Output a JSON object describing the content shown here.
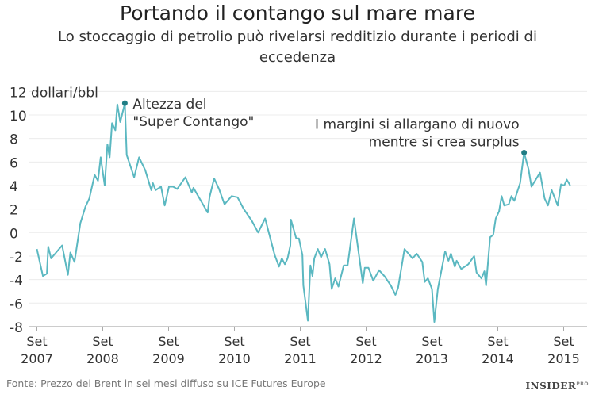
{
  "header": {
    "title": "Portando il contango sul mare mare",
    "subtitle": "Lo stoccaggio di petrolio può rivelarsi redditizio durante i periodi di eccedenza"
  },
  "footer": {
    "source": "Fonte: Prezzo del Brent in sei mesi diffuso su ICE Futures Europe",
    "logo": "INSIDER",
    "logo_sup": "PRO"
  },
  "chart_data": {
    "type": "line",
    "title": "Portando il contango sul mare mare",
    "ylabel": "dollari/bbl",
    "ylim": [
      -8,
      12
    ],
    "yticks": [
      -8,
      -6,
      -4,
      -2,
      0,
      2,
      4,
      6,
      8,
      10,
      12
    ],
    "ytick_labels": [
      "-8",
      "-6",
      "-4",
      "-2",
      "0",
      "2",
      "4",
      "6",
      "8",
      "10",
      "12 dollari/bbl"
    ],
    "xlim": [
      "2007-07-15",
      "2015-12-31"
    ],
    "xticks": [
      {
        "date": "2007-09-01",
        "month": "Set",
        "year": "2007"
      },
      {
        "date": "2008-09-01",
        "month": "Set",
        "year": "2008"
      },
      {
        "date": "2009-09-01",
        "month": "Set",
        "year": "2009"
      },
      {
        "date": "2010-09-01",
        "month": "Set",
        "year": "2010"
      },
      {
        "date": "2011-09-01",
        "month": "Set",
        "year": "2011"
      },
      {
        "date": "2012-09-01",
        "month": "Set",
        "year": "2012"
      },
      {
        "date": "2013-09-01",
        "month": "Set",
        "year": "2013"
      },
      {
        "date": "2014-09-01",
        "month": "Set",
        "year": "2014"
      },
      {
        "date": "2015-09-01",
        "month": "Set",
        "year": "2015"
      }
    ],
    "grid": true,
    "line_color": "#5bb8c1",
    "marker_color": "#1f7d84",
    "series": [
      {
        "points": [
          [
            "2007-09-01",
            -1.4
          ],
          [
            "2007-10-04",
            -3.7
          ],
          [
            "2007-10-26",
            -3.5
          ],
          [
            "2007-11-03",
            -1.2
          ],
          [
            "2007-11-19",
            -2.2
          ],
          [
            "2008-01-19",
            -1.1
          ],
          [
            "2008-02-21",
            -3.6
          ],
          [
            "2008-03-04",
            -1.7
          ],
          [
            "2008-03-27",
            -2.5
          ],
          [
            "2008-04-29",
            0.8
          ],
          [
            "2008-05-27",
            2.2
          ],
          [
            "2008-06-18",
            2.9
          ],
          [
            "2008-07-17",
            4.9
          ],
          [
            "2008-08-05",
            4.4
          ],
          [
            "2008-08-20",
            6.4
          ],
          [
            "2008-09-12",
            4.0
          ],
          [
            "2008-09-27",
            7.5
          ],
          [
            "2008-10-09",
            6.4
          ],
          [
            "2008-10-22",
            9.3
          ],
          [
            "2008-11-10",
            8.7
          ],
          [
            "2008-11-21",
            10.9
          ],
          [
            "2008-12-07",
            9.4
          ],
          [
            "2009-01-02",
            11.0
          ],
          [
            "2009-01-12",
            6.6
          ],
          [
            "2009-02-23",
            4.7
          ],
          [
            "2009-03-20",
            6.4
          ],
          [
            "2009-04-24",
            5.3
          ],
          [
            "2009-05-27",
            3.6
          ],
          [
            "2009-06-05",
            4.2
          ],
          [
            "2009-06-20",
            3.6
          ],
          [
            "2009-07-20",
            3.9
          ],
          [
            "2009-08-10",
            2.3
          ],
          [
            "2009-09-03",
            3.9
          ],
          [
            "2009-09-26",
            3.9
          ],
          [
            "2009-10-18",
            3.7
          ],
          [
            "2009-12-03",
            4.7
          ],
          [
            "2010-01-08",
            3.4
          ],
          [
            "2010-01-17",
            3.8
          ],
          [
            "2010-04-05",
            1.7
          ],
          [
            "2010-04-15",
            3.0
          ],
          [
            "2010-05-10",
            4.6
          ],
          [
            "2010-06-07",
            3.7
          ],
          [
            "2010-07-07",
            2.4
          ],
          [
            "2010-08-16",
            3.1
          ],
          [
            "2010-09-18",
            3.0
          ],
          [
            "2010-10-22",
            2.0
          ],
          [
            "2010-12-06",
            1.0
          ],
          [
            "2011-01-11",
            0.0
          ],
          [
            "2011-02-19",
            1.2
          ],
          [
            "2011-04-11",
            -1.9
          ],
          [
            "2011-05-05",
            -2.9
          ],
          [
            "2011-05-20",
            -2.2
          ],
          [
            "2011-06-07",
            -2.7
          ],
          [
            "2011-06-22",
            -2.2
          ],
          [
            "2011-07-07",
            -1.1
          ],
          [
            "2011-07-10",
            1.1
          ],
          [
            "2011-08-09",
            -0.5
          ],
          [
            "2011-08-24",
            -0.5
          ],
          [
            "2011-09-13",
            -1.9
          ],
          [
            "2011-09-18",
            -4.5
          ],
          [
            "2011-10-13",
            -7.5
          ],
          [
            "2011-10-27",
            -2.8
          ],
          [
            "2011-11-08",
            -3.7
          ],
          [
            "2011-11-18",
            -2.2
          ],
          [
            "2011-12-07",
            -1.4
          ],
          [
            "2011-12-25",
            -2.1
          ],
          [
            "2012-01-17",
            -1.4
          ],
          [
            "2012-02-11",
            -2.7
          ],
          [
            "2012-02-23",
            -4.8
          ],
          [
            "2012-03-12",
            -3.9
          ],
          [
            "2012-03-30",
            -4.6
          ],
          [
            "2012-04-29",
            -2.8
          ],
          [
            "2012-05-20",
            -2.8
          ],
          [
            "2012-06-25",
            1.2
          ],
          [
            "2012-08-13",
            -4.3
          ],
          [
            "2012-08-24",
            -3.0
          ],
          [
            "2012-09-14",
            -3.0
          ],
          [
            "2012-10-10",
            -4.1
          ],
          [
            "2012-11-12",
            -3.2
          ],
          [
            "2012-12-11",
            -3.7
          ],
          [
            "2013-01-16",
            -4.5
          ],
          [
            "2013-02-11",
            -5.3
          ],
          [
            "2013-02-26",
            -4.7
          ],
          [
            "2013-04-01",
            -1.4
          ],
          [
            "2013-05-15",
            -2.2
          ],
          [
            "2013-06-08",
            -1.8
          ],
          [
            "2013-07-08",
            -2.5
          ],
          [
            "2013-07-22",
            -4.2
          ],
          [
            "2013-08-09",
            -3.9
          ],
          [
            "2013-09-01",
            -4.8
          ],
          [
            "2013-09-14",
            -7.6
          ],
          [
            "2013-10-03",
            -4.8
          ],
          [
            "2013-11-13",
            -1.6
          ],
          [
            "2013-12-01",
            -2.4
          ],
          [
            "2013-12-15",
            -1.8
          ],
          [
            "2014-01-06",
            -2.9
          ],
          [
            "2014-01-16",
            -2.4
          ],
          [
            "2014-02-11",
            -3.1
          ],
          [
            "2014-03-20",
            -2.7
          ],
          [
            "2014-04-22",
            -2.0
          ],
          [
            "2014-05-05",
            -3.4
          ],
          [
            "2014-06-01",
            -3.9
          ],
          [
            "2014-06-18",
            -3.3
          ],
          [
            "2014-06-27",
            -4.5
          ],
          [
            "2014-07-19",
            -0.4
          ],
          [
            "2014-08-06",
            -0.2
          ],
          [
            "2014-08-20",
            1.2
          ],
          [
            "2014-09-08",
            1.8
          ],
          [
            "2014-09-22",
            3.1
          ],
          [
            "2014-10-06",
            2.3
          ],
          [
            "2014-11-01",
            2.4
          ],
          [
            "2014-11-16",
            3.1
          ],
          [
            "2014-12-01",
            2.7
          ],
          [
            "2015-01-03",
            4.2
          ],
          [
            "2015-01-25",
            6.8
          ],
          [
            "2015-02-19",
            5.4
          ],
          [
            "2015-03-05",
            3.9
          ],
          [
            "2015-04-22",
            5.1
          ],
          [
            "2015-05-17",
            2.9
          ],
          [
            "2015-06-05",
            2.3
          ],
          [
            "2015-06-26",
            3.6
          ],
          [
            "2015-07-29",
            2.3
          ],
          [
            "2015-08-17",
            4.1
          ],
          [
            "2015-09-04",
            4.0
          ],
          [
            "2015-09-18",
            4.5
          ],
          [
            "2015-10-07",
            4.0
          ]
        ]
      }
    ],
    "annotations": [
      {
        "date": "2009-01-02",
        "value": 11.0,
        "lines": [
          "Altezza del",
          "\"Super Contango\""
        ]
      },
      {
        "date": "2015-01-25",
        "value": 6.8,
        "lines": [
          "I margini si allargano di nuovo",
          "mentre si crea surplus"
        ]
      }
    ]
  }
}
